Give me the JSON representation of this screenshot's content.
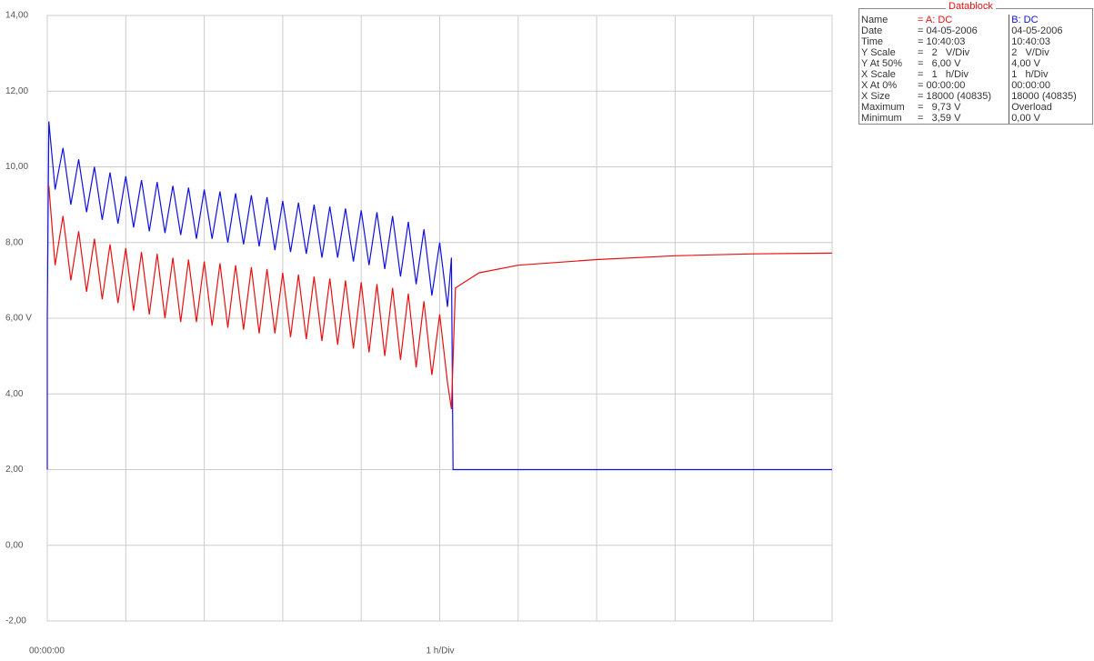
{
  "chart_data": {
    "type": "line",
    "xlabel": "1 h/Div",
    "xlim": [
      0,
      10
    ],
    "xticks": [
      {
        "value": 0,
        "label": "00:00:00"
      }
    ],
    "xgrid_step": 1,
    "ylim": [
      -2,
      14
    ],
    "yticks": [
      {
        "value": 14,
        "label": "14,00"
      },
      {
        "value": 12,
        "label": "12,00"
      },
      {
        "value": 10,
        "label": "10,00"
      },
      {
        "value": 8,
        "label": "8,00"
      },
      {
        "value": 6,
        "label": "6,00 V"
      },
      {
        "value": 4,
        "label": "4,00"
      },
      {
        "value": 2,
        "label": "2,00"
      },
      {
        "value": 0,
        "label": "0,00"
      },
      {
        "value": -2,
        "label": "-2,00"
      }
    ],
    "grid": true,
    "series": [
      {
        "name": "B: DC",
        "color": "#1010e0",
        "x": [
          0,
          0,
          0.02,
          0.1,
          0.2,
          0.3,
          0.4,
          0.5,
          0.6,
          0.7,
          0.8,
          0.9,
          1.0,
          1.1,
          1.2,
          1.3,
          1.4,
          1.5,
          1.6,
          1.7,
          1.8,
          1.9,
          2.0,
          2.1,
          2.2,
          2.3,
          2.4,
          2.5,
          2.6,
          2.7,
          2.8,
          2.9,
          3.0,
          3.1,
          3.2,
          3.3,
          3.4,
          3.5,
          3.6,
          3.7,
          3.8,
          3.9,
          4.0,
          4.1,
          4.2,
          4.3,
          4.4,
          4.5,
          4.6,
          4.7,
          4.8,
          4.9,
          5.0,
          5.1,
          5.15,
          5.17,
          10
        ],
        "values": [
          2,
          6,
          11.2,
          9.4,
          10.5,
          9.0,
          10.2,
          8.8,
          10.0,
          8.6,
          9.85,
          8.5,
          9.75,
          8.4,
          9.65,
          8.3,
          9.6,
          8.25,
          9.5,
          8.2,
          9.45,
          8.1,
          9.4,
          8.1,
          9.35,
          8.0,
          9.3,
          7.95,
          9.25,
          7.9,
          9.2,
          7.8,
          9.1,
          7.75,
          9.05,
          7.7,
          9.0,
          7.6,
          8.95,
          7.6,
          8.9,
          7.5,
          8.85,
          7.4,
          8.8,
          7.3,
          8.7,
          7.1,
          8.55,
          6.9,
          8.35,
          6.6,
          8.0,
          6.3,
          7.6,
          2,
          2
        ]
      },
      {
        "name": "A: DC",
        "color": "#e81010",
        "x": [
          0.02,
          0.1,
          0.2,
          0.3,
          0.4,
          0.5,
          0.6,
          0.7,
          0.8,
          0.9,
          1.0,
          1.1,
          1.2,
          1.3,
          1.4,
          1.5,
          1.6,
          1.7,
          1.8,
          1.9,
          2.0,
          2.1,
          2.2,
          2.3,
          2.4,
          2.5,
          2.6,
          2.7,
          2.8,
          2.9,
          3.0,
          3.1,
          3.2,
          3.3,
          3.4,
          3.5,
          3.6,
          3.7,
          3.8,
          3.9,
          4.0,
          4.1,
          4.2,
          4.3,
          4.4,
          4.5,
          4.6,
          4.7,
          4.8,
          4.9,
          5.0,
          5.1,
          5.15,
          5.2,
          5.5,
          6,
          7,
          8,
          9,
          10
        ],
        "values": [
          9.5,
          7.4,
          8.7,
          7.0,
          8.3,
          6.7,
          8.1,
          6.5,
          7.95,
          6.4,
          7.85,
          6.2,
          7.75,
          6.1,
          7.7,
          6.0,
          7.6,
          5.9,
          7.55,
          5.9,
          7.5,
          5.8,
          7.45,
          5.75,
          7.4,
          5.7,
          7.35,
          5.6,
          7.3,
          5.6,
          7.2,
          5.5,
          7.15,
          5.45,
          7.1,
          5.4,
          7.05,
          5.3,
          7.0,
          5.2,
          6.95,
          5.1,
          6.9,
          5.0,
          6.8,
          4.9,
          6.65,
          4.7,
          6.45,
          4.5,
          6.1,
          4.3,
          3.6,
          6.8,
          7.2,
          7.4,
          7.55,
          7.65,
          7.7,
          7.72
        ]
      }
    ]
  },
  "datablock": {
    "title": "Datablock",
    "header": [
      "Name",
      "= A: DC",
      "B: DC"
    ],
    "rows": [
      [
        "Date",
        "= 04-05-2006",
        "04-05-2006"
      ],
      [
        "Time",
        "= 10:40:03",
        "10:40:03"
      ],
      [
        "Y Scale",
        "=   2   V/Div",
        "2   V/Div"
      ],
      [
        "Y At 50%",
        "=   6,00 V",
        "4,00 V"
      ],
      [
        "X Scale",
        "=   1   h/Div",
        "1   h/Div"
      ],
      [
        "X At 0%",
        "= 00:00:00",
        "00:00:00"
      ],
      [
        "X Size",
        "= 18000 (40835)",
        "18000 (40835)"
      ],
      [
        "Maximum",
        "=   9,73 V",
        "Overload"
      ],
      [
        "Minimum",
        "=   3,59 V",
        "0,00 V"
      ]
    ]
  }
}
